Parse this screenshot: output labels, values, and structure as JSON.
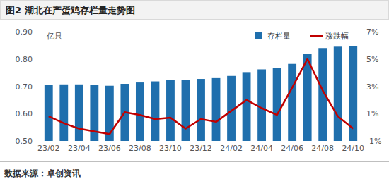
{
  "chart_data": {
    "type": "bar",
    "title": "图2 湖北在产蛋鸡存栏量走势图",
    "y_label": "亿只",
    "source": "数据来源：卓创资讯",
    "categories": [
      "23/02",
      null,
      "23/04",
      null,
      "23/06",
      null,
      "23/08",
      null,
      "23/10",
      null,
      "23/12",
      null,
      "24/02",
      null,
      "24/04",
      null,
      "24/06",
      null,
      "24/08",
      null,
      "24/10"
    ],
    "series": [
      {
        "name": "存栏量",
        "type": "bar",
        "color": "#1f6fad",
        "values": [
          0.705,
          0.707,
          0.707,
          0.705,
          0.702,
          0.709,
          0.714,
          0.718,
          0.722,
          0.722,
          0.727,
          0.73,
          0.738,
          0.752,
          0.762,
          0.768,
          0.782,
          0.818,
          0.84,
          0.845,
          0.848
        ]
      },
      {
        "name": "涨跌幅",
        "type": "line",
        "color": "#c00000",
        "axis": "y2",
        "values": [
          0.8,
          0.3,
          -0.1,
          -0.3,
          -0.5,
          1.1,
          0.9,
          0.6,
          0.7,
          -0.1,
          0.6,
          0.4,
          1.2,
          2.0,
          1.4,
          0.9,
          2.9,
          5.0,
          2.7,
          0.8,
          -0.1
        ]
      }
    ],
    "ylim": [
      0.5,
      0.9
    ],
    "yticks": [
      {
        "value": 0.5,
        "label": "0.50"
      },
      {
        "value": 0.6,
        "label": "0.60"
      },
      {
        "value": 0.7,
        "label": "0.70"
      },
      {
        "value": 0.8,
        "label": "0.80"
      },
      {
        "value": 0.9,
        "label": "0.90"
      }
    ],
    "y2lim": [
      -1,
      7
    ],
    "y2ticks": [
      {
        "value": -1,
        "label": "-1%"
      },
      {
        "value": 1,
        "label": "1%"
      },
      {
        "value": 3,
        "label": "3%"
      },
      {
        "value": 5,
        "label": "5%"
      },
      {
        "value": 7,
        "label": "7%"
      }
    ],
    "grid": false,
    "legend": "top-right"
  }
}
